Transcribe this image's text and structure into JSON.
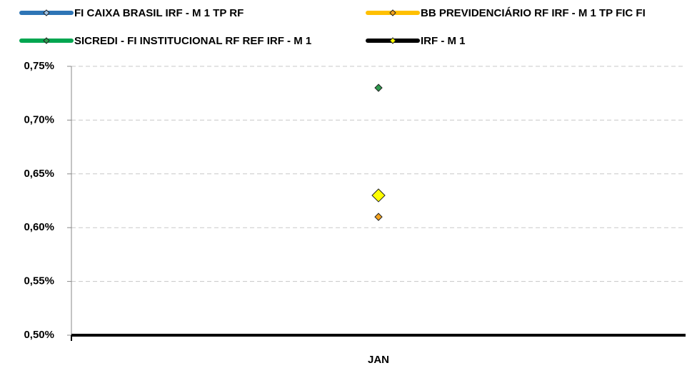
{
  "chart_data": {
    "type": "line",
    "categories": [
      "JAN"
    ],
    "series": [
      {
        "name": "FI CAIXA BRASIL IRF - M 1 TP RF",
        "color": "#2e75b6",
        "marker_color": "#9dc3e6",
        "values": [
          0.63
        ]
      },
      {
        "name": "BB PREVIDENCIÁRIO RF IRF - M 1 TP FIC FI",
        "color": "#ffc000",
        "marker_color": "#f4a31e",
        "values": [
          0.61
        ]
      },
      {
        "name": "SICREDI - FI INSTITUCIONAL RF REF IRF - M 1",
        "color": "#00a650",
        "marker_color": "#2e9b4e",
        "values": [
          0.73
        ]
      },
      {
        "name": "IRF - M 1",
        "color": "#000000",
        "marker_color": "#ffff00",
        "values": [
          0.63
        ]
      }
    ],
    "ylim": [
      0.5,
      0.75
    ],
    "yticks": [
      {
        "value": 0.5,
        "label": "0,50%"
      },
      {
        "value": 0.55,
        "label": "0,55%"
      },
      {
        "value": 0.6,
        "label": "0,60%"
      },
      {
        "value": 0.65,
        "label": "0,65%"
      },
      {
        "value": 0.7,
        "label": "0,70%"
      },
      {
        "value": 0.75,
        "label": "0,75%"
      }
    ],
    "grid": true
  }
}
